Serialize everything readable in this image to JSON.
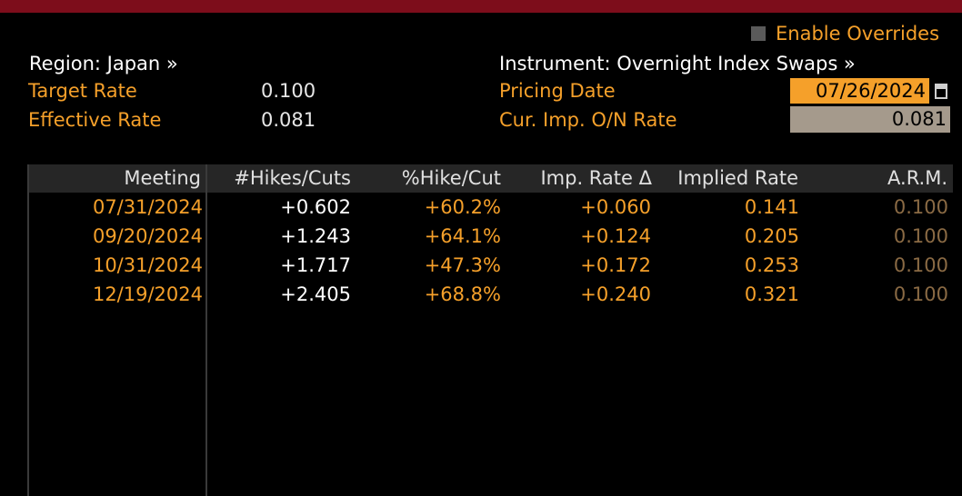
{
  "header": {
    "enable_overrides_label": "Enable Overrides",
    "region": "Region: Japan »",
    "instrument": "Instrument: Overnight Index Swaps »"
  },
  "left_fields": {
    "target_rate_label": "Target Rate",
    "target_rate_value": "0.100",
    "effective_rate_label": "Effective Rate",
    "effective_rate_value": "0.081"
  },
  "right_fields": {
    "pricing_date_label": "Pricing Date",
    "pricing_date_value": "07/26/2024",
    "cur_imp_rate_label": "Cur. Imp. O/N Rate",
    "cur_imp_rate_value": "0.081"
  },
  "table": {
    "columns": [
      "Meeting",
      "#Hikes/Cuts",
      "%Hike/Cut",
      "Imp. Rate Δ",
      "Implied Rate",
      "A.R.M."
    ],
    "rows": [
      {
        "meeting": "07/31/2024",
        "hikes": "+0.602",
        "pct": "+60.2%",
        "delta": "+0.060",
        "implied": "0.141",
        "arm": "0.100"
      },
      {
        "meeting": "09/20/2024",
        "hikes": "+1.243",
        "pct": "+64.1%",
        "delta": "+0.124",
        "implied": "0.205",
        "arm": "0.100"
      },
      {
        "meeting": "10/31/2024",
        "hikes": "+1.717",
        "pct": "+47.3%",
        "delta": "+0.172",
        "implied": "0.253",
        "arm": "0.100"
      },
      {
        "meeting": "12/19/2024",
        "hikes": "+2.405",
        "pct": "+68.8%",
        "delta": "+0.240",
        "implied": "0.321",
        "arm": "0.100"
      }
    ]
  },
  "colors": {
    "topbar": "#7d0d1b",
    "accent_orange": "#f5a02a",
    "rate_field_bg": "#a59a8c",
    "header_bg": "#262626"
  },
  "icons": {
    "calendar": "calendar-icon",
    "checkbox": "checkbox-icon"
  }
}
